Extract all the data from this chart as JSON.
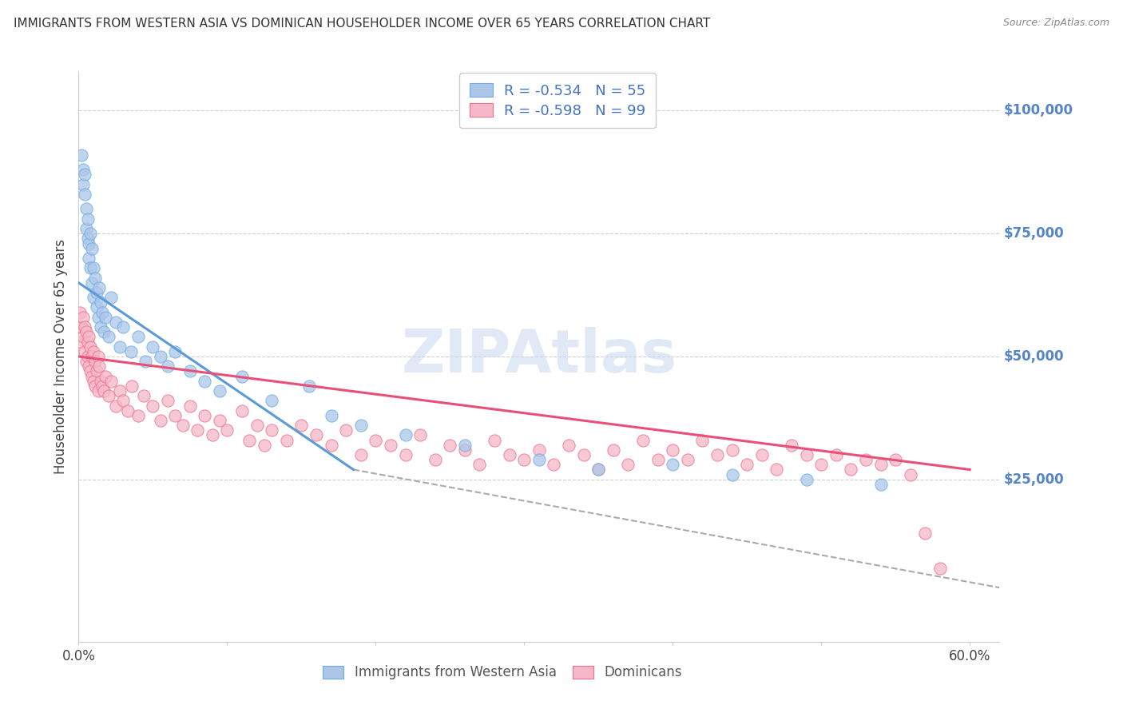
{
  "title": "IMMIGRANTS FROM WESTERN ASIA VS DOMINICAN HOUSEHOLDER INCOME OVER 65 YEARS CORRELATION CHART",
  "source": "Source: ZipAtlas.com",
  "ylabel": "Householder Income Over 65 years",
  "xlim": [
    0.0,
    0.62
  ],
  "ylim": [
    -8000,
    108000
  ],
  "xtick_vals": [
    0.0,
    0.1,
    0.2,
    0.3,
    0.4,
    0.5,
    0.6
  ],
  "xtick_labels_show": [
    "0.0%",
    "",
    "",
    "",
    "",
    "",
    "60.0%"
  ],
  "ytick_vals": [
    25000,
    50000,
    75000,
    100000
  ],
  "ytick_labels": [
    "$25,000",
    "$50,000",
    "$75,000",
    "$100,000"
  ],
  "blue_label": "Immigrants from Western Asia",
  "pink_label": "Dominicans",
  "blue_R": -0.534,
  "blue_N": 55,
  "pink_R": -0.598,
  "pink_N": 99,
  "blue_fill": "#adc6e8",
  "blue_edge": "#6aaee8",
  "pink_fill": "#f5b8c8",
  "pink_edge": "#f07090",
  "grid_color": "#d0d0d0",
  "right_label_color": "#5585c5",
  "legend_text_color": "#4472c4",
  "watermark": "ZIPAtlas",
  "watermark_color": "#c8d8ee",
  "blue_line_color": "#5b9bd5",
  "pink_line_color": "#e8507a",
  "dash_color": "#aaaaaa",
  "blue_line": [
    0.0,
    65000,
    0.185,
    27000
  ],
  "pink_line": [
    0.0,
    50000,
    0.6,
    27000
  ],
  "dash_line": [
    0.185,
    27000,
    0.62,
    3000
  ],
  "blue_x": [
    0.002,
    0.003,
    0.003,
    0.004,
    0.004,
    0.005,
    0.005,
    0.006,
    0.006,
    0.007,
    0.007,
    0.008,
    0.008,
    0.009,
    0.009,
    0.01,
    0.01,
    0.011,
    0.012,
    0.012,
    0.013,
    0.014,
    0.015,
    0.015,
    0.016,
    0.017,
    0.018,
    0.02,
    0.022,
    0.025,
    0.028,
    0.03,
    0.035,
    0.04,
    0.045,
    0.05,
    0.055,
    0.06,
    0.065,
    0.075,
    0.085,
    0.095,
    0.11,
    0.13,
    0.155,
    0.17,
    0.19,
    0.22,
    0.26,
    0.31,
    0.35,
    0.4,
    0.44,
    0.49,
    0.54
  ],
  "blue_y": [
    91000,
    88000,
    85000,
    87000,
    83000,
    80000,
    76000,
    74000,
    78000,
    73000,
    70000,
    75000,
    68000,
    72000,
    65000,
    68000,
    62000,
    66000,
    63000,
    60000,
    58000,
    64000,
    61000,
    56000,
    59000,
    55000,
    58000,
    54000,
    62000,
    57000,
    52000,
    56000,
    51000,
    54000,
    49000,
    52000,
    50000,
    48000,
    51000,
    47000,
    45000,
    43000,
    46000,
    41000,
    44000,
    38000,
    36000,
    34000,
    32000,
    29000,
    27000,
    28000,
    26000,
    25000,
    24000
  ],
  "pink_x": [
    0.001,
    0.002,
    0.002,
    0.003,
    0.003,
    0.004,
    0.004,
    0.005,
    0.005,
    0.006,
    0.006,
    0.007,
    0.007,
    0.008,
    0.008,
    0.009,
    0.009,
    0.01,
    0.01,
    0.011,
    0.011,
    0.012,
    0.013,
    0.013,
    0.014,
    0.015,
    0.016,
    0.017,
    0.018,
    0.02,
    0.022,
    0.025,
    0.028,
    0.03,
    0.033,
    0.036,
    0.04,
    0.044,
    0.05,
    0.055,
    0.06,
    0.065,
    0.07,
    0.075,
    0.08,
    0.085,
    0.09,
    0.095,
    0.1,
    0.11,
    0.115,
    0.12,
    0.125,
    0.13,
    0.14,
    0.15,
    0.16,
    0.17,
    0.18,
    0.19,
    0.2,
    0.21,
    0.22,
    0.23,
    0.24,
    0.25,
    0.26,
    0.27,
    0.28,
    0.29,
    0.3,
    0.31,
    0.32,
    0.33,
    0.34,
    0.35,
    0.36,
    0.37,
    0.38,
    0.39,
    0.4,
    0.41,
    0.42,
    0.43,
    0.44,
    0.45,
    0.46,
    0.47,
    0.48,
    0.49,
    0.5,
    0.51,
    0.52,
    0.53,
    0.54,
    0.55,
    0.56,
    0.57,
    0.58
  ],
  "pink_y": [
    59000,
    56000,
    53000,
    58000,
    54000,
    56000,
    51000,
    55000,
    49000,
    53000,
    50000,
    54000,
    48000,
    52000,
    47000,
    50000,
    46000,
    51000,
    45000,
    49000,
    44000,
    47000,
    50000,
    43000,
    48000,
    45000,
    44000,
    43000,
    46000,
    42000,
    45000,
    40000,
    43000,
    41000,
    39000,
    44000,
    38000,
    42000,
    40000,
    37000,
    41000,
    38000,
    36000,
    40000,
    35000,
    38000,
    34000,
    37000,
    35000,
    39000,
    33000,
    36000,
    32000,
    35000,
    33000,
    36000,
    34000,
    32000,
    35000,
    30000,
    33000,
    32000,
    30000,
    34000,
    29000,
    32000,
    31000,
    28000,
    33000,
    30000,
    29000,
    31000,
    28000,
    32000,
    30000,
    27000,
    31000,
    28000,
    33000,
    29000,
    31000,
    29000,
    33000,
    30000,
    31000,
    28000,
    30000,
    27000,
    32000,
    30000,
    28000,
    30000,
    27000,
    29000,
    28000,
    29000,
    26000,
    14000,
    7000
  ]
}
